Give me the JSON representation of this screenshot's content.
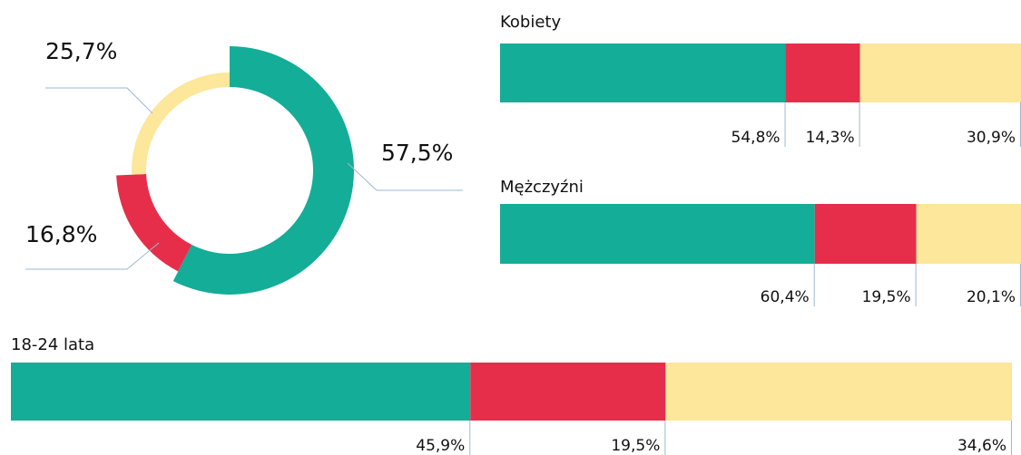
{
  "chart_data": [
    {
      "type": "pie",
      "values": [
        57.5,
        16.8,
        25.7
      ],
      "value_labels": [
        "57,5%",
        "16,8%",
        "25,7%"
      ],
      "colors": [
        "#14ad97",
        "#e62e4a",
        "#fce79a"
      ]
    },
    {
      "type": "bar",
      "title": "Kobiety",
      "values": [
        54.8,
        14.3,
        30.9
      ],
      "value_labels": [
        "54,8%",
        "14,3%",
        "30,9%"
      ],
      "colors": [
        "#14ad97",
        "#e62e4a",
        "#fce79a"
      ],
      "xlim": [
        0,
        100
      ]
    },
    {
      "type": "bar",
      "title": "Mężczyźni",
      "values": [
        60.4,
        19.5,
        20.1
      ],
      "value_labels": [
        "60,4%",
        "19,5%",
        "20,1%"
      ],
      "colors": [
        "#14ad97",
        "#e62e4a",
        "#fce79a"
      ],
      "xlim": [
        0,
        100
      ]
    },
    {
      "type": "bar",
      "title": "18-24 lata",
      "values": [
        45.9,
        19.5,
        34.6
      ],
      "value_labels": [
        "45,9%",
        "19,5%",
        "34,6%"
      ],
      "colors": [
        "#14ad97",
        "#e62e4a",
        "#fce79a"
      ],
      "xlim": [
        0,
        100
      ]
    }
  ]
}
